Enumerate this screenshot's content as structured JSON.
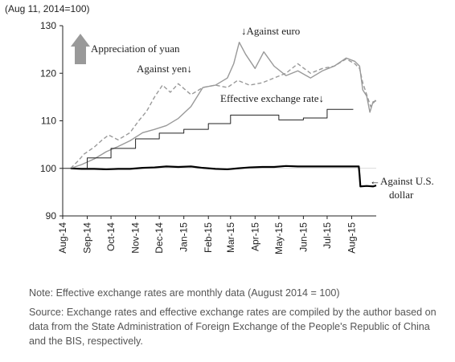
{
  "chart_data": {
    "type": "line",
    "unit_label": "(Aug 11, 2014=100)",
    "ylim": [
      90,
      130
    ],
    "yticks": [
      90,
      100,
      110,
      120,
      130
    ],
    "xlim": [
      "2014-08-01",
      "2015-09-01"
    ],
    "xticks": [
      {
        "date": "2014-08-01",
        "label": "Aug-14"
      },
      {
        "date": "2014-09-01",
        "label": "Sep-14"
      },
      {
        "date": "2014-10-01",
        "label": "Oct-14"
      },
      {
        "date": "2014-11-01",
        "label": "Nov-14"
      },
      {
        "date": "2014-12-01",
        "label": "Dec-14"
      },
      {
        "date": "2015-01-01",
        "label": "Jan-15"
      },
      {
        "date": "2015-02-01",
        "label": "Feb-15"
      },
      {
        "date": "2015-03-01",
        "label": "Mar-15"
      },
      {
        "date": "2015-04-01",
        "label": "Apr-15"
      },
      {
        "date": "2015-05-01",
        "label": "May-15"
      },
      {
        "date": "2015-06-01",
        "label": "Jun-15"
      },
      {
        "date": "2015-07-01",
        "label": "Jul-15"
      },
      {
        "date": "2015-08-01",
        "label": "Aug-15"
      }
    ],
    "grid": false,
    "series": [
      {
        "name": "Against U.S. dollar",
        "label_lines": [
          "←Against U.S.",
          "dollar"
        ],
        "color": "#000000",
        "dash": "",
        "width": 2.2,
        "points": [
          [
            "2014-08-11",
            100.0
          ],
          [
            "2014-08-25",
            99.9
          ],
          [
            "2014-09-10",
            99.9
          ],
          [
            "2014-09-25",
            99.8
          ],
          [
            "2014-10-10",
            99.9
          ],
          [
            "2014-10-25",
            99.9
          ],
          [
            "2014-11-10",
            100.1
          ],
          [
            "2014-11-25",
            100.2
          ],
          [
            "2014-12-10",
            100.4
          ],
          [
            "2014-12-25",
            100.3
          ],
          [
            "2015-01-10",
            100.4
          ],
          [
            "2015-01-25",
            100.1
          ],
          [
            "2015-02-10",
            99.9
          ],
          [
            "2015-02-25",
            99.8
          ],
          [
            "2015-03-10",
            100.0
          ],
          [
            "2015-03-25",
            100.2
          ],
          [
            "2015-04-10",
            100.3
          ],
          [
            "2015-04-25",
            100.3
          ],
          [
            "2015-05-10",
            100.5
          ],
          [
            "2015-05-25",
            100.4
          ],
          [
            "2015-06-10",
            100.4
          ],
          [
            "2015-06-25",
            100.4
          ],
          [
            "2015-07-10",
            100.4
          ],
          [
            "2015-07-25",
            100.4
          ],
          [
            "2015-08-10",
            100.4
          ],
          [
            "2015-08-11",
            98.5
          ],
          [
            "2015-08-12",
            96.2
          ],
          [
            "2015-08-20",
            96.3
          ],
          [
            "2015-08-28",
            96.2
          ],
          [
            "2015-09-01",
            96.4
          ]
        ]
      },
      {
        "name": "Against euro",
        "label_lines": [
          "↓Against euro"
        ],
        "color": "#999999",
        "dash": "",
        "width": 1.4,
        "points": [
          [
            "2014-08-11",
            100.0
          ],
          [
            "2014-08-25",
            100.8
          ],
          [
            "2014-09-10",
            102.0
          ],
          [
            "2014-09-25",
            103.5
          ],
          [
            "2014-10-10",
            104.6
          ],
          [
            "2014-10-25",
            105.8
          ],
          [
            "2014-11-10",
            107.5
          ],
          [
            "2014-11-25",
            108.2
          ],
          [
            "2014-12-10",
            109.0
          ],
          [
            "2014-12-25",
            110.5
          ],
          [
            "2015-01-10",
            113.0
          ],
          [
            "2015-01-25",
            117.0
          ],
          [
            "2015-02-10",
            117.5
          ],
          [
            "2015-02-25",
            119.0
          ],
          [
            "2015-03-05",
            122.0
          ],
          [
            "2015-03-12",
            126.5
          ],
          [
            "2015-03-20",
            124.0
          ],
          [
            "2015-04-01",
            121.0
          ],
          [
            "2015-04-12",
            124.5
          ],
          [
            "2015-04-25",
            121.5
          ],
          [
            "2015-05-10",
            119.5
          ],
          [
            "2015-05-25",
            120.5
          ],
          [
            "2015-06-10",
            119.0
          ],
          [
            "2015-06-25",
            120.5
          ],
          [
            "2015-07-10",
            121.5
          ],
          [
            "2015-07-25",
            123.2
          ],
          [
            "2015-08-05",
            122.5
          ],
          [
            "2015-08-11",
            121.5
          ],
          [
            "2015-08-15",
            116.5
          ],
          [
            "2015-08-20",
            115.2
          ],
          [
            "2015-08-24",
            111.8
          ],
          [
            "2015-08-28",
            114.0
          ],
          [
            "2015-09-01",
            114.2
          ]
        ]
      },
      {
        "name": "Against yen",
        "label_lines": [
          "Against yen↓"
        ],
        "color": "#999999",
        "dash": "5,3",
        "width": 1.4,
        "points": [
          [
            "2014-08-11",
            100.0
          ],
          [
            "2014-08-20",
            101.5
          ],
          [
            "2014-08-28",
            103.0
          ],
          [
            "2014-09-10",
            104.5
          ],
          [
            "2014-09-20",
            106.0
          ],
          [
            "2014-09-28",
            107.0
          ],
          [
            "2014-10-10",
            106.0
          ],
          [
            "2014-10-25",
            107.5
          ],
          [
            "2014-11-05",
            110.0
          ],
          [
            "2014-11-15",
            112.0
          ],
          [
            "2014-11-25",
            115.0
          ],
          [
            "2014-12-05",
            117.5
          ],
          [
            "2014-12-15",
            116.0
          ],
          [
            "2014-12-25",
            117.8
          ],
          [
            "2015-01-10",
            115.5
          ],
          [
            "2015-01-25",
            117.0
          ],
          [
            "2015-02-10",
            117.5
          ],
          [
            "2015-02-25",
            117.0
          ],
          [
            "2015-03-10",
            118.5
          ],
          [
            "2015-03-25",
            117.5
          ],
          [
            "2015-04-10",
            118.0
          ],
          [
            "2015-04-25",
            119.0
          ],
          [
            "2015-05-10",
            120.0
          ],
          [
            "2015-05-25",
            122.0
          ],
          [
            "2015-06-10",
            120.0
          ],
          [
            "2015-06-25",
            121.0
          ],
          [
            "2015-07-10",
            121.5
          ],
          [
            "2015-07-25",
            123.0
          ],
          [
            "2015-08-05",
            122.0
          ],
          [
            "2015-08-11",
            121.0
          ],
          [
            "2015-08-15",
            118.0
          ],
          [
            "2015-08-20",
            115.5
          ],
          [
            "2015-08-25",
            113.0
          ],
          [
            "2015-09-01",
            114.5
          ]
        ]
      },
      {
        "name": "Effective exchange rate",
        "label_lines": [
          "Effective exchange rate↓"
        ],
        "color": "#222222",
        "dash": "",
        "width": 1.0,
        "step": true,
        "points": [
          [
            "2014-08-01",
            100.0
          ],
          [
            "2014-09-01",
            102.2
          ],
          [
            "2014-10-01",
            104.2
          ],
          [
            "2014-11-01",
            106.2
          ],
          [
            "2014-12-01",
            107.4
          ],
          [
            "2015-01-01",
            108.2
          ],
          [
            "2015-02-01",
            109.4
          ],
          [
            "2015-03-01",
            111.2
          ],
          [
            "2015-04-01",
            111.2
          ],
          [
            "2015-05-01",
            110.2
          ],
          [
            "2015-06-01",
            110.6
          ],
          [
            "2015-07-01",
            112.4
          ],
          [
            "2015-08-01",
            112.4
          ]
        ]
      }
    ],
    "annotations": [
      {
        "text": "Appreciation of yuan",
        "arrow": "up"
      }
    ]
  },
  "notes": {
    "note": "Note: Effective exchange rates are monthly data (August 2014 = 100)",
    "source": "Source: Exchange rates and effective exchange rates are compiled by the author based on data from the State Administration of Foreign Exchange of the People's Republic of China and the BIS, respectively."
  }
}
